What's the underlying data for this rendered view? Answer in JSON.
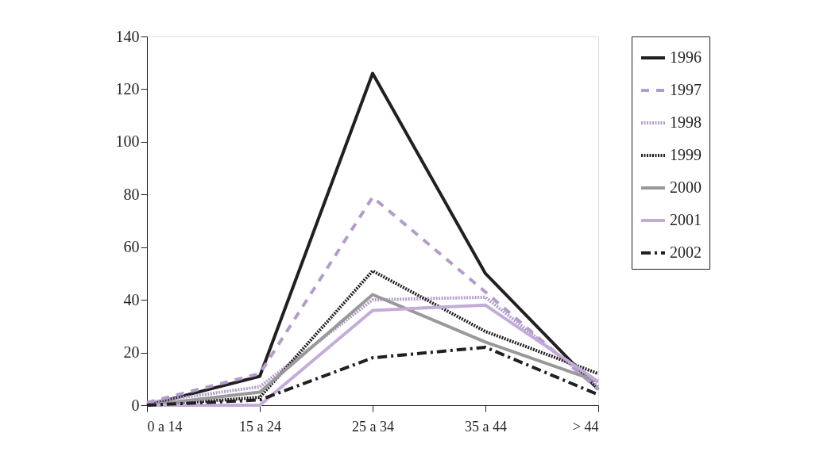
{
  "chart_data": {
    "type": "line",
    "categories": [
      "0 a 14",
      "15 a 24",
      "25 a 34",
      "35 a 44",
      "> 44"
    ],
    "ylim": [
      0,
      140
    ],
    "yticks": [
      0,
      20,
      40,
      60,
      80,
      100,
      120,
      140
    ],
    "grid": false,
    "legend": "right",
    "marker": "none",
    "series": [
      {
        "name": "1996",
        "color": "#231f20",
        "line_style": "solid",
        "values": [
          0,
          11,
          126,
          50,
          6
        ]
      },
      {
        "name": "1997",
        "color": "#b39ccb",
        "line_style": "dashed",
        "values": [
          1,
          12,
          79,
          43,
          6
        ]
      },
      {
        "name": "1998",
        "color": "#b39ccb",
        "line_style": "dotted",
        "values": [
          1,
          7,
          40,
          41,
          7
        ]
      },
      {
        "name": "1999",
        "color": "#231f20",
        "line_style": "dotted",
        "values": [
          0,
          3,
          51,
          28,
          12
        ]
      },
      {
        "name": "2000",
        "color": "#999999",
        "line_style": "solid",
        "values": [
          0,
          5,
          42,
          24,
          9
        ]
      },
      {
        "name": "2001",
        "color": "#c3acd8",
        "line_style": "solid",
        "values": [
          0,
          0,
          36,
          38,
          9
        ]
      },
      {
        "name": "2002",
        "color": "#231f20",
        "line_style": "dashdot",
        "values": [
          0,
          2,
          18,
          22,
          4
        ]
      }
    ]
  }
}
